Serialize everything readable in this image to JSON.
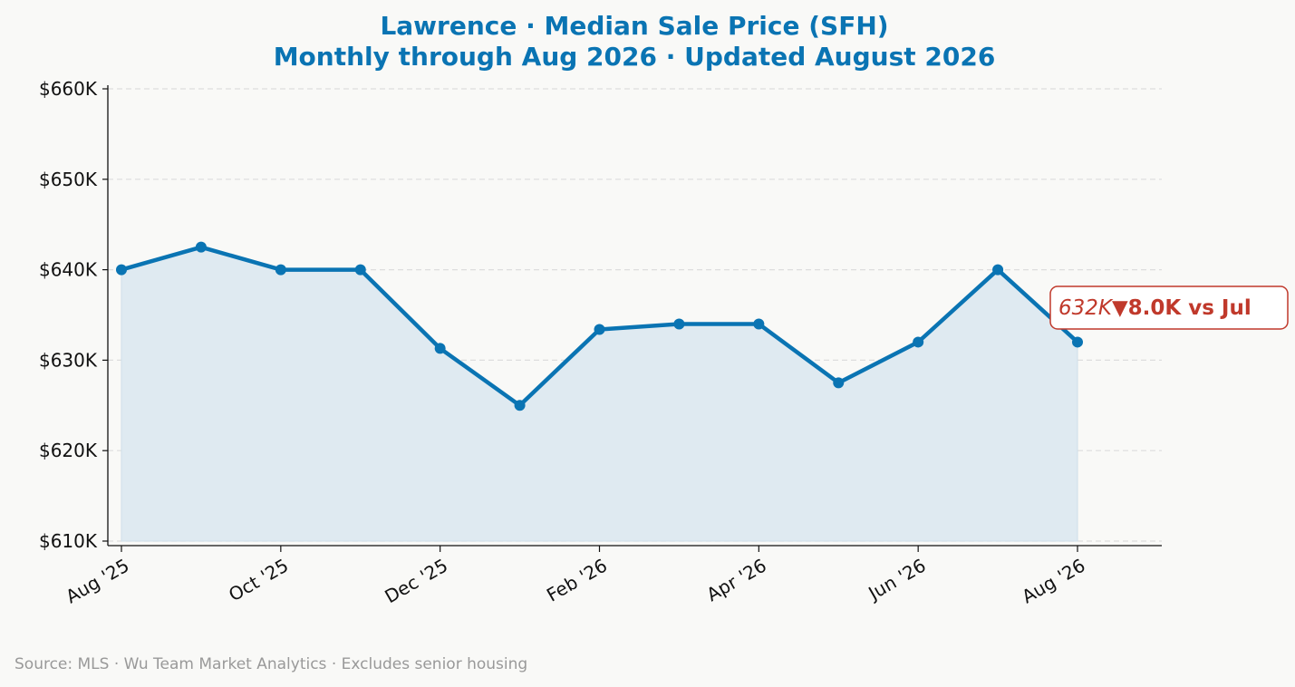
{
  "chart_data": {
    "type": "line",
    "title": "Lawrence  ·  Median Sale Price (SFH)",
    "subtitle": "Monthly through Aug 2026  ·  Updated August 2026",
    "x": [
      "Aug '25",
      "Sep '25",
      "Oct '25",
      "Nov '25",
      "Dec '25",
      "Jan '26",
      "Feb '26",
      "Mar '26",
      "Apr '26",
      "May '26",
      "Jun '26",
      "Jul '26",
      "Aug '26"
    ],
    "x_tick_labels": [
      "Aug '25",
      "Oct '25",
      "Dec '25",
      "Feb '26",
      "Apr '26",
      "Jun '26",
      "Aug '26"
    ],
    "series": [
      {
        "values": [
          640000,
          642500,
          640000,
          640000,
          631300,
          625000,
          633400,
          634000,
          634000,
          627500,
          632000,
          640000,
          632000
        ]
      }
    ],
    "ylim": [
      610000,
      660000
    ],
    "y_ticks": [
      610000,
      620000,
      630000,
      640000,
      650000,
      660000
    ],
    "y_tick_labels": [
      "$610K",
      "$620K",
      "$630K",
      "$640K",
      "$650K",
      "$660K"
    ],
    "xlabel": "",
    "ylabel": "",
    "grid": "horizontal dashed",
    "colors": {
      "line": "#0a74b3",
      "fill": "#dfeaf1",
      "annotation": "#c0392b"
    },
    "annotation": {
      "value_text": "632K",
      "delta_text": "▼8.0K vs Jul"
    }
  },
  "footer": {
    "source": "Source: MLS · Wu Team Market Analytics · Excludes senior housing"
  }
}
